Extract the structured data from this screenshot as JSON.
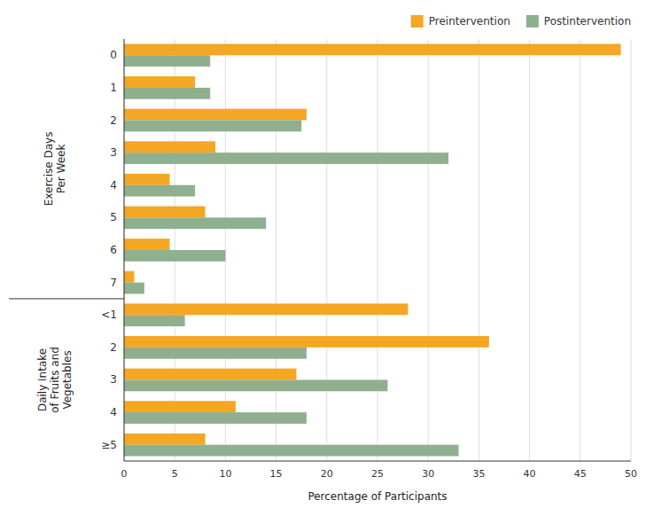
{
  "chart_data": [
    {
      "type": "bar",
      "orientation": "horizontal",
      "ylabel": "Exercise Days\nPer Week",
      "categories": [
        "0",
        "1",
        "2",
        "3",
        "4",
        "5",
        "6",
        "7"
      ],
      "series": [
        {
          "name": "Preintervention",
          "color": "#F5A623",
          "values": [
            49,
            7,
            18,
            9,
            4.5,
            8,
            4.5,
            1
          ]
        },
        {
          "name": "Postintervention",
          "color": "#8FAF8F",
          "values": [
            8.5,
            8.5,
            17.5,
            32,
            7,
            14,
            10,
            2
          ]
        }
      ],
      "xlim": [
        0,
        50
      ],
      "xticks": [
        0,
        5,
        10,
        15,
        20,
        25,
        30,
        35,
        40,
        45,
        50
      ],
      "grid": true,
      "legend": "upper right",
      "tick_labels": "y"
    },
    {
      "type": "bar",
      "orientation": "horizontal",
      "ylabel": "Daily Intake\nof Fruits and\nVegetables",
      "xlabel": "Percentage of Participants",
      "categories": [
        "<1",
        "2",
        "3",
        "4",
        "≥5"
      ],
      "series": [
        {
          "color": "#F5A623",
          "values": [
            28,
            36,
            17,
            11,
            8
          ]
        },
        {
          "color": "#8FAF8F",
          "values": [
            6,
            18,
            26,
            18,
            33
          ]
        }
      ],
      "xlim": [
        0,
        50
      ],
      "xticks": [
        0,
        5,
        10,
        15,
        20,
        25,
        30,
        35,
        40,
        45,
        50
      ],
      "grid": true
    }
  ]
}
